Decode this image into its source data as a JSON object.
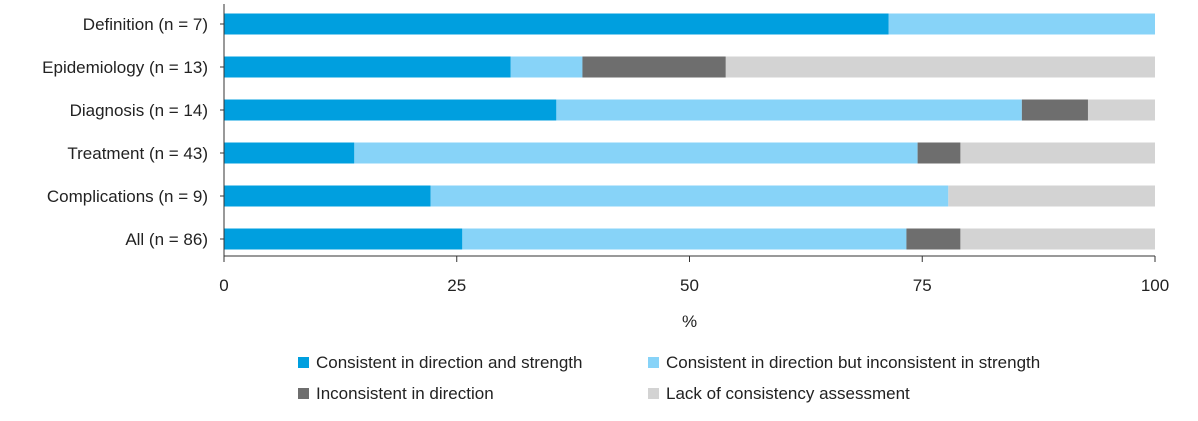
{
  "chart_data": {
    "type": "bar",
    "orientation": "horizontal",
    "stacked": true,
    "title": "",
    "xlabel": "%",
    "ylabel": "",
    "xlim": [
      0,
      100
    ],
    "x_ticks": [
      0,
      25,
      50,
      75,
      100
    ],
    "grid": false,
    "legend_position": "bottom",
    "categories": [
      "Definition (n = 7)",
      "Epidemiology (n = 13)",
      "Diagnosis (n = 14)",
      "Treatment (n = 43)",
      "Complications (n = 9)",
      "All (n = 86)"
    ],
    "series": [
      {
        "name": "Consistent in direction and strength",
        "color": "#009FDF",
        "values": [
          71.4,
          30.8,
          35.7,
          14.0,
          22.2,
          25.6
        ]
      },
      {
        "name": "Consistent in direction but inconsistent in strength",
        "color": "#87D3F8",
        "values": [
          28.6,
          7.7,
          50.0,
          60.5,
          55.6,
          47.7
        ]
      },
      {
        "name": "Inconsistent in direction",
        "color": "#6E6E6E",
        "values": [
          0,
          15.4,
          7.1,
          4.6,
          0,
          5.8
        ]
      },
      {
        "name": "Lack of consistency assessment",
        "color": "#D3D3D3",
        "values": [
          0,
          46.1,
          7.2,
          20.9,
          22.2,
          20.9
        ]
      }
    ]
  }
}
